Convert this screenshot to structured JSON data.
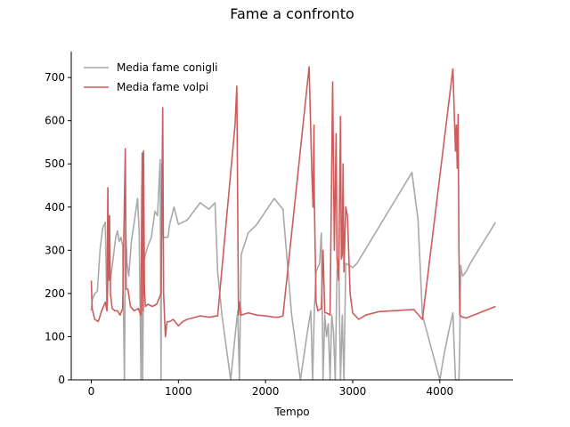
{
  "chart_data": {
    "type": "line",
    "title": "Fame a confronto",
    "xlabel": "Tempo",
    "ylabel": "",
    "xlim": [
      -230,
      4840
    ],
    "ylim": [
      0,
      760
    ],
    "xticks": [
      0,
      1000,
      2000,
      3000,
      4000
    ],
    "yticks": [
      0,
      100,
      200,
      300,
      400,
      500,
      600,
      700
    ],
    "grid": false,
    "legend_position": "top-left",
    "series": [
      {
        "name": "Media fame conigli",
        "color": "#a9a9a9",
        "points": [
          [
            0,
            160
          ],
          [
            10,
            185
          ],
          [
            40,
            200
          ],
          [
            70,
            205
          ],
          [
            100,
            300
          ],
          [
            130,
            350
          ],
          [
            160,
            365
          ],
          [
            180,
            160
          ],
          [
            200,
            260
          ],
          [
            220,
            230
          ],
          [
            250,
            280
          ],
          [
            280,
            330
          ],
          [
            300,
            345
          ],
          [
            320,
            320
          ],
          [
            340,
            330
          ],
          [
            360,
            310
          ],
          [
            380,
            0
          ],
          [
            395,
            350
          ],
          [
            410,
            270
          ],
          [
            430,
            240
          ],
          [
            460,
            320
          ],
          [
            490,
            360
          ],
          [
            530,
            420
          ],
          [
            550,
            340
          ],
          [
            570,
            0
          ],
          [
            580,
            450
          ],
          [
            590,
            0
          ],
          [
            600,
            270
          ],
          [
            620,
            290
          ],
          [
            650,
            310
          ],
          [
            690,
            330
          ],
          [
            730,
            390
          ],
          [
            760,
            380
          ],
          [
            790,
            510
          ],
          [
            800,
            0
          ],
          [
            810,
            500
          ],
          [
            820,
            330
          ],
          [
            850,
            330
          ],
          [
            880,
            330
          ],
          [
            900,
            360
          ],
          [
            950,
            400
          ],
          [
            1000,
            360
          ],
          [
            1100,
            370
          ],
          [
            1250,
            410
          ],
          [
            1350,
            395
          ],
          [
            1420,
            410
          ],
          [
            1450,
            250
          ],
          [
            1500,
            150
          ],
          [
            1600,
            0
          ],
          [
            1650,
            100
          ],
          [
            1680,
            160
          ],
          [
            1700,
            0
          ],
          [
            1720,
            290
          ],
          [
            1800,
            340
          ],
          [
            1900,
            360
          ],
          [
            2000,
            390
          ],
          [
            2100,
            420
          ],
          [
            2200,
            395
          ],
          [
            2300,
            150
          ],
          [
            2400,
            0
          ],
          [
            2480,
            110
          ],
          [
            2520,
            160
          ],
          [
            2540,
            0
          ],
          [
            2560,
            160
          ],
          [
            2580,
            250
          ],
          [
            2620,
            270
          ],
          [
            2640,
            340
          ],
          [
            2660,
            0
          ],
          [
            2680,
            150
          ],
          [
            2700,
            100
          ],
          [
            2720,
            130
          ],
          [
            2740,
            0
          ],
          [
            2760,
            150
          ],
          [
            2780,
            110
          ],
          [
            2800,
            0
          ],
          [
            2820,
            250
          ],
          [
            2840,
            280
          ],
          [
            2860,
            0
          ],
          [
            2880,
            150
          ],
          [
            2900,
            0
          ],
          [
            2920,
            270
          ],
          [
            2960,
            265
          ],
          [
            3000,
            260
          ],
          [
            3050,
            270
          ],
          [
            3680,
            480
          ],
          [
            3750,
            370
          ],
          [
            3800,
            150
          ],
          [
            4000,
            0
          ],
          [
            4050,
            60
          ],
          [
            4100,
            110
          ],
          [
            4150,
            155
          ],
          [
            4180,
            0
          ],
          [
            4220,
            0
          ],
          [
            4230,
            90
          ],
          [
            4240,
            265
          ],
          [
            4260,
            240
          ],
          [
            4300,
            250
          ],
          [
            4350,
            270
          ],
          [
            4640,
            365
          ]
        ]
      },
      {
        "name": "Media fame volpi",
        "color": "#cd5c5c",
        "points": [
          [
            0,
            230
          ],
          [
            10,
            165
          ],
          [
            40,
            140
          ],
          [
            80,
            135
          ],
          [
            120,
            160
          ],
          [
            160,
            180
          ],
          [
            180,
            160
          ],
          [
            190,
            445
          ],
          [
            200,
            230
          ],
          [
            210,
            380
          ],
          [
            220,
            200
          ],
          [
            240,
            165
          ],
          [
            270,
            160
          ],
          [
            300,
            160
          ],
          [
            330,
            150
          ],
          [
            360,
            165
          ],
          [
            390,
            535
          ],
          [
            400,
            210
          ],
          [
            420,
            210
          ],
          [
            450,
            170
          ],
          [
            490,
            160
          ],
          [
            540,
            165
          ],
          [
            570,
            150
          ],
          [
            585,
            525
          ],
          [
            595,
            160
          ],
          [
            600,
            530
          ],
          [
            610,
            210
          ],
          [
            620,
            170
          ],
          [
            650,
            175
          ],
          [
            700,
            170
          ],
          [
            750,
            175
          ],
          [
            800,
            200
          ],
          [
            820,
            630
          ],
          [
            830,
            200
          ],
          [
            850,
            100
          ],
          [
            870,
            135
          ],
          [
            900,
            135
          ],
          [
            940,
            140
          ],
          [
            1000,
            125
          ],
          [
            1050,
            135
          ],
          [
            1100,
            140
          ],
          [
            1250,
            148
          ],
          [
            1350,
            145
          ],
          [
            1450,
            148
          ],
          [
            1650,
            590
          ],
          [
            1670,
            680
          ],
          [
            1690,
            150
          ],
          [
            1700,
            180
          ],
          [
            1720,
            150
          ],
          [
            1800,
            155
          ],
          [
            1900,
            150
          ],
          [
            2000,
            148
          ],
          [
            2100,
            145
          ],
          [
            2150,
            145
          ],
          [
            2200,
            148
          ],
          [
            2500,
            725
          ],
          [
            2530,
            490
          ],
          [
            2545,
            400
          ],
          [
            2555,
            590
          ],
          [
            2560,
            420
          ],
          [
            2580,
            180
          ],
          [
            2600,
            160
          ],
          [
            2640,
            165
          ],
          [
            2660,
            300
          ],
          [
            2680,
            155
          ],
          [
            2700,
            155
          ],
          [
            2740,
            150
          ],
          [
            2770,
            690
          ],
          [
            2790,
            300
          ],
          [
            2810,
            570
          ],
          [
            2820,
            280
          ],
          [
            2840,
            230
          ],
          [
            2860,
            610
          ],
          [
            2870,
            280
          ],
          [
            2880,
            290
          ],
          [
            2890,
            500
          ],
          [
            2900,
            250
          ],
          [
            2920,
            400
          ],
          [
            2940,
            380
          ],
          [
            2970,
            200
          ],
          [
            3000,
            155
          ],
          [
            3070,
            140
          ],
          [
            3150,
            150
          ],
          [
            3300,
            158
          ],
          [
            3700,
            163
          ],
          [
            3800,
            140
          ],
          [
            4150,
            720
          ],
          [
            4180,
            530
          ],
          [
            4190,
            590
          ],
          [
            4200,
            490
          ],
          [
            4210,
            615
          ],
          [
            4220,
            300
          ],
          [
            4230,
            150
          ],
          [
            4260,
            145
          ],
          [
            4280,
            145
          ],
          [
            4300,
            143
          ],
          [
            4640,
            170
          ]
        ]
      }
    ]
  }
}
